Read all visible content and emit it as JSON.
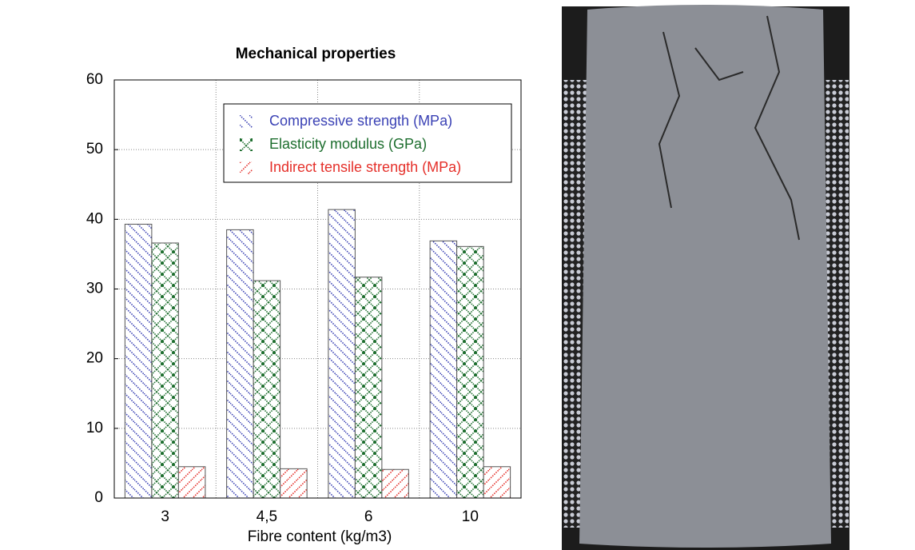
{
  "chart_data": {
    "type": "bar",
    "title": "Mechanical properties",
    "x_label": "Fibre content (kg/m3)",
    "categories": [
      "3",
      "4,5",
      "6",
      "10"
    ],
    "series": [
      {
        "name": "Compressive strength (MPa)",
        "color": "#3b42b5",
        "values": [
          39.3,
          38.5,
          41.4,
          36.9
        ]
      },
      {
        "name": "Elasticity modulus (GPa)",
        "color": "#1d6e2e",
        "values": [
          36.6,
          31.2,
          31.7,
          36.1
        ]
      },
      {
        "name": "Indirect tensile strength (MPa)",
        "color": "#e5302a",
        "values": [
          4.5,
          4.2,
          4.1,
          4.5
        ]
      }
    ],
    "ylim": [
      0,
      60
    ],
    "yticks": [
      0,
      10,
      20,
      30,
      40,
      50,
      60
    ],
    "grid": true,
    "legend": "upper right"
  }
}
